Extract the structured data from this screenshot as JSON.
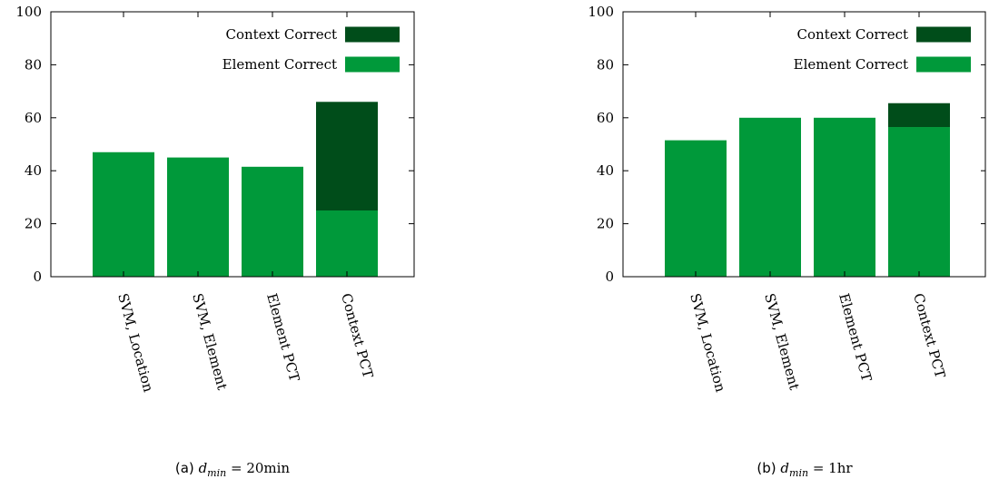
{
  "colors": {
    "element_correct": "#00993a",
    "context_correct": "#004d1a",
    "axis": "#000000"
  },
  "chart_data": [
    {
      "type": "bar",
      "stacked": true,
      "categories": [
        "SVM, Location",
        "SVM, Element",
        "Element PCT",
        "Context PCT"
      ],
      "series": [
        {
          "name": "Element Correct",
          "values": [
            47,
            45,
            41.5,
            25
          ]
        },
        {
          "name": "Context Correct",
          "values": [
            0,
            0,
            0,
            41
          ]
        }
      ],
      "ylim": [
        0,
        100
      ],
      "yticks": [
        0,
        20,
        40,
        60,
        80,
        100
      ],
      "legend_position": "top-right",
      "caption": {
        "prefix": "(a)",
        "var": "d",
        "sub": "min",
        "eq": "=",
        "value": "20min"
      }
    },
    {
      "type": "bar",
      "stacked": true,
      "categories": [
        "SVM, Location",
        "SVM, Element",
        "Element PCT",
        "Context PCT"
      ],
      "series": [
        {
          "name": "Element Correct",
          "values": [
            51.5,
            60,
            60,
            56.5
          ]
        },
        {
          "name": "Context Correct",
          "values": [
            0,
            0,
            0,
            9
          ]
        }
      ],
      "ylim": [
        0,
        100
      ],
      "yticks": [
        0,
        20,
        40,
        60,
        80,
        100
      ],
      "legend_position": "top-right",
      "caption": {
        "prefix": "(b)",
        "var": "d",
        "sub": "min",
        "eq": "=",
        "value": "1hr"
      }
    }
  ]
}
